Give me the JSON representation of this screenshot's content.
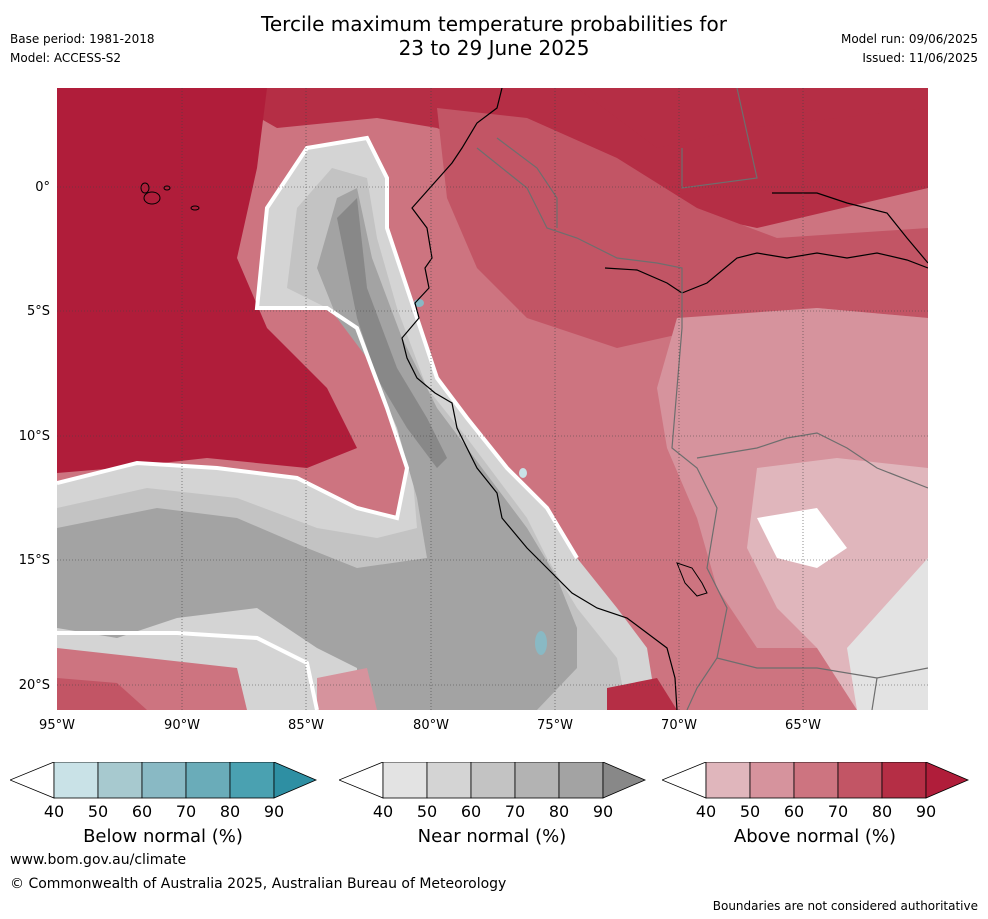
{
  "header": {
    "title_line1": "Tercile maximum temperature probabilities for",
    "title_line2": "23 to 29 June 2025",
    "base_period": "Base period: 1981-2018",
    "model": "Model: ACCESS-S2",
    "model_run": "Model run: 09/06/2025",
    "issued": "Issued: 11/06/2025"
  },
  "axes": {
    "lat_ticks": [
      "0°",
      "5°S",
      "10°S",
      "15°S",
      "20°S"
    ],
    "lon_ticks": [
      "95°W",
      "90°W",
      "85°W",
      "80°W",
      "75°W",
      "70°W",
      "65°W"
    ]
  },
  "colorbars": [
    {
      "name": "below",
      "title": "Below normal (%)",
      "ticks": [
        "40",
        "50",
        "60",
        "70",
        "80",
        "90"
      ],
      "colors": [
        "#ffffff",
        "#c9e2e7",
        "#a7c9cf",
        "#89b9c4",
        "#6aacb9",
        "#4aa1b1",
        "#2e8fa3"
      ]
    },
    {
      "name": "near",
      "title": "Near normal (%)",
      "ticks": [
        "40",
        "50",
        "60",
        "70",
        "80",
        "90"
      ],
      "colors": [
        "#ffffff",
        "#e3e3e3",
        "#d4d4d4",
        "#c3c3c3",
        "#b3b3b3",
        "#a3a3a3",
        "#888888"
      ]
    },
    {
      "name": "above",
      "title": "Above normal (%)",
      "ticks": [
        "40",
        "50",
        "60",
        "70",
        "80",
        "90"
      ],
      "colors": [
        "#ffffff",
        "#e0b6bc",
        "#d6939d",
        "#cd7480",
        "#c25565",
        "#b52e45",
        "#b01d3a"
      ]
    }
  ],
  "footer": {
    "website": "www.bom.gov.au/climate",
    "copyright": "© Commonwealth of Australia 2025, Australian Bureau of Meteorology",
    "disclaimer": "Boundaries are not considered authoritative"
  }
}
